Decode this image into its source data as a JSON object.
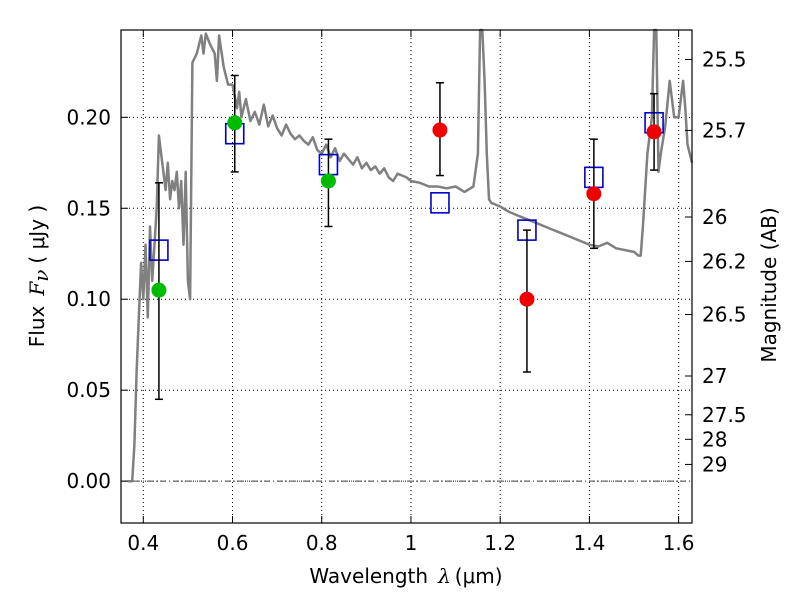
{
  "chart_data": {
    "type": "scatter",
    "title": "",
    "xlabel": {
      "prefix": "Wavelength",
      "symbol": "λ",
      "unit": "(μm)"
    },
    "ylabel": {
      "prefix": "Flux",
      "symbol": "F",
      "subscript": "ν",
      "unit": "( μJy )"
    },
    "y2label": "Magnitude (AB)",
    "xlim": [
      0.35,
      1.63
    ],
    "ylim": [
      -0.023,
      0.248
    ],
    "grid": true,
    "x_ticks": [
      {
        "value": 0.4,
        "label": "0.4"
      },
      {
        "value": 0.6,
        "label": "0.6"
      },
      {
        "value": 0.8,
        "label": "0.8"
      },
      {
        "value": 1.0,
        "label": "1"
      },
      {
        "value": 1.2,
        "label": "1.2"
      },
      {
        "value": 1.4,
        "label": "1.4"
      },
      {
        "value": 1.6,
        "label": "1.6"
      }
    ],
    "y_ticks": [
      {
        "value": 0.0,
        "label": "0.00"
      },
      {
        "value": 0.05,
        "label": "0.05"
      },
      {
        "value": 0.1,
        "label": "0.10"
      },
      {
        "value": 0.15,
        "label": "0.15"
      },
      {
        "value": 0.2,
        "label": "0.20"
      }
    ],
    "y2_ticks": [
      {
        "flux": 0.2318,
        "label": "25.5"
      },
      {
        "flux": 0.1928,
        "label": "25.7"
      },
      {
        "flux": 0.1452,
        "label": "26"
      },
      {
        "flux": 0.1208,
        "label": "26.2"
      },
      {
        "flux": 0.0916,
        "label": "26.5"
      },
      {
        "flux": 0.0578,
        "label": "27"
      },
      {
        "flux": 0.0365,
        "label": "27.5"
      },
      {
        "flux": 0.023,
        "label": "28"
      },
      {
        "flux": 0.0092,
        "label": "29"
      }
    ],
    "zero_line": 0.0,
    "series": [
      {
        "kind": "model_sed",
        "color": "#808080",
        "x": [
          0.365,
          0.375,
          0.38,
          0.385,
          0.39,
          0.395,
          0.4,
          0.405,
          0.41,
          0.415,
          0.42,
          0.425,
          0.43,
          0.435,
          0.44,
          0.445,
          0.45,
          0.455,
          0.46,
          0.465,
          0.47,
          0.475,
          0.48,
          0.485,
          0.49,
          0.495,
          0.5,
          0.505,
          0.51,
          0.52,
          0.53,
          0.535,
          0.54,
          0.55,
          0.56,
          0.565,
          0.57,
          0.58,
          0.585,
          0.59,
          0.6,
          0.61,
          0.615,
          0.62,
          0.63,
          0.64,
          0.65,
          0.66,
          0.67,
          0.68,
          0.69,
          0.7,
          0.71,
          0.72,
          0.73,
          0.74,
          0.75,
          0.76,
          0.77,
          0.78,
          0.79,
          0.8,
          0.81,
          0.82,
          0.83,
          0.84,
          0.85,
          0.86,
          0.87,
          0.88,
          0.89,
          0.9,
          0.91,
          0.92,
          0.93,
          0.94,
          0.95,
          0.96,
          0.97,
          0.98,
          0.99,
          1.0,
          1.02,
          1.04,
          1.06,
          1.08,
          1.1,
          1.12,
          1.14,
          1.15,
          1.155,
          1.16,
          1.165,
          1.17,
          1.175,
          1.18,
          1.2,
          1.22,
          1.24,
          1.26,
          1.28,
          1.3,
          1.32,
          1.34,
          1.36,
          1.38,
          1.4,
          1.42,
          1.44,
          1.46,
          1.48,
          1.5,
          1.51,
          1.515,
          1.52,
          1.53,
          1.54,
          1.545,
          1.55,
          1.555,
          1.56,
          1.57,
          1.58,
          1.59,
          1.6,
          1.605,
          1.61,
          1.615,
          1.62,
          1.63
        ],
        "y": [
          0.0,
          0.0,
          0.02,
          0.06,
          0.09,
          0.12,
          0.1,
          0.13,
          0.09,
          0.14,
          0.11,
          0.13,
          0.15,
          0.19,
          0.18,
          0.17,
          0.16,
          0.175,
          0.155,
          0.165,
          0.16,
          0.17,
          0.15,
          0.165,
          0.13,
          0.17,
          0.11,
          0.1,
          0.23,
          0.235,
          0.245,
          0.235,
          0.246,
          0.24,
          0.235,
          0.22,
          0.245,
          0.228,
          0.223,
          0.218,
          0.218,
          0.205,
          0.214,
          0.2,
          0.21,
          0.198,
          0.203,
          0.196,
          0.207,
          0.195,
          0.201,
          0.194,
          0.19,
          0.196,
          0.191,
          0.188,
          0.19,
          0.187,
          0.185,
          0.189,
          0.182,
          0.18,
          0.185,
          0.178,
          0.183,
          0.176,
          0.18,
          0.177,
          0.174,
          0.178,
          0.172,
          0.175,
          0.171,
          0.173,
          0.169,
          0.172,
          0.167,
          0.165,
          0.169,
          0.168,
          0.167,
          0.165,
          0.164,
          0.162,
          0.162,
          0.161,
          0.162,
          0.159,
          0.162,
          0.18,
          0.25,
          0.25,
          0.22,
          0.18,
          0.155,
          0.153,
          0.151,
          0.148,
          0.146,
          0.144,
          0.142,
          0.14,
          0.138,
          0.136,
          0.134,
          0.132,
          0.13,
          0.129,
          0.131,
          0.128,
          0.127,
          0.126,
          0.124,
          0.124,
          0.14,
          0.18,
          0.2,
          0.25,
          0.25,
          0.17,
          0.18,
          0.195,
          0.22,
          0.2,
          0.2,
          0.21,
          0.22,
          0.205,
          0.185,
          0.175
        ]
      },
      {
        "kind": "model_photometry",
        "marker": "open-square",
        "color": "#0000cc",
        "x": [
          0.435,
          0.605,
          0.815,
          1.065,
          1.26,
          1.41,
          1.545
        ],
        "y": [
          0.127,
          0.191,
          0.174,
          0.153,
          0.138,
          0.167,
          0.197
        ]
      },
      {
        "kind": "observed_optical",
        "marker": "filled-circle",
        "color": "#00bb00",
        "x": [
          0.435,
          0.605,
          0.815
        ],
        "y": [
          0.105,
          0.197,
          0.165
        ],
        "err_low": [
          0.045,
          0.17,
          0.14
        ],
        "err_high": [
          0.164,
          0.223,
          0.188
        ]
      },
      {
        "kind": "observed_nir",
        "marker": "filled-circle",
        "color": "#ee0000",
        "x": [
          1.065,
          1.26,
          1.41,
          1.545
        ],
        "y": [
          0.193,
          0.1,
          0.158,
          0.192
        ],
        "err_low": [
          0.168,
          0.06,
          0.128,
          0.171
        ],
        "err_high": [
          0.219,
          0.138,
          0.188,
          0.213
        ]
      }
    ]
  }
}
